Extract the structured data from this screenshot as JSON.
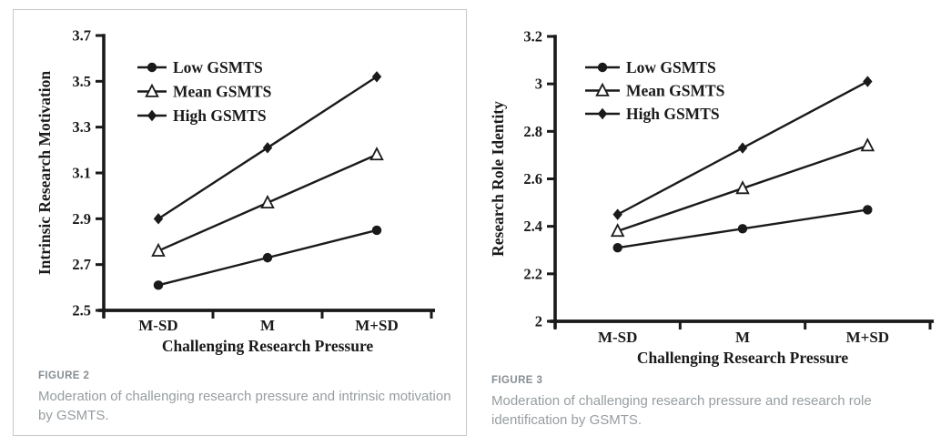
{
  "page": {
    "background": "#ffffff"
  },
  "colors": {
    "chart_ink": "#1a1a1a",
    "panel_border": "#c6c8ca",
    "caption_label": "#878d92",
    "caption_text": "#979da1"
  },
  "figures": [
    {
      "label": "FIGURE 2",
      "caption": "Moderation of challenging research pressure and intrinsic motivation by GSMTS."
    },
    {
      "label": "FIGURE 3",
      "caption": "Moderation of challenging research pressure and research role identification by GSMTS."
    }
  ],
  "chart_data": [
    {
      "type": "line",
      "title": "",
      "categories": [
        "M-SD",
        "M",
        "M+SD"
      ],
      "series": [
        {
          "name": "Low GSMTS",
          "marker": "circle-filled",
          "values": [
            2.61,
            2.73,
            2.85
          ]
        },
        {
          "name": "Mean GSMTS",
          "marker": "triangle-open",
          "values": [
            2.76,
            2.97,
            3.18
          ]
        },
        {
          "name": "High GSMTS",
          "marker": "diamond-filled",
          "values": [
            2.9,
            3.21,
            3.52
          ]
        }
      ],
      "xlabel": "Challenging Research Pressure",
      "ylabel": "Intrinsic Research Motivation",
      "ylim": [
        2.5,
        3.7
      ],
      "yticks": [
        "2.5",
        "2.7",
        "2.9",
        "3.1",
        "3.3",
        "3.5",
        "3.7"
      ],
      "legend_position": "top-left",
      "grid": false,
      "line_color": "#1a1a1a"
    },
    {
      "type": "line",
      "title": "",
      "categories": [
        "M-SD",
        "M",
        "M+SD"
      ],
      "series": [
        {
          "name": "Low GSMTS",
          "marker": "circle-filled",
          "values": [
            2.31,
            2.39,
            2.47
          ]
        },
        {
          "name": "Mean GSMTS",
          "marker": "triangle-open",
          "values": [
            2.38,
            2.56,
            2.74
          ]
        },
        {
          "name": "High GSMTS",
          "marker": "diamond-filled",
          "values": [
            2.45,
            2.73,
            3.01
          ]
        }
      ],
      "xlabel": "Challenging Research Pressure",
      "ylabel": "Research Role Identity",
      "ylim": [
        2.0,
        3.2
      ],
      "yticks": [
        "2",
        "2.2",
        "2.4",
        "2.6",
        "2.8",
        "3",
        "3.2"
      ],
      "legend_position": "top-left",
      "grid": false,
      "line_color": "#1a1a1a"
    }
  ]
}
